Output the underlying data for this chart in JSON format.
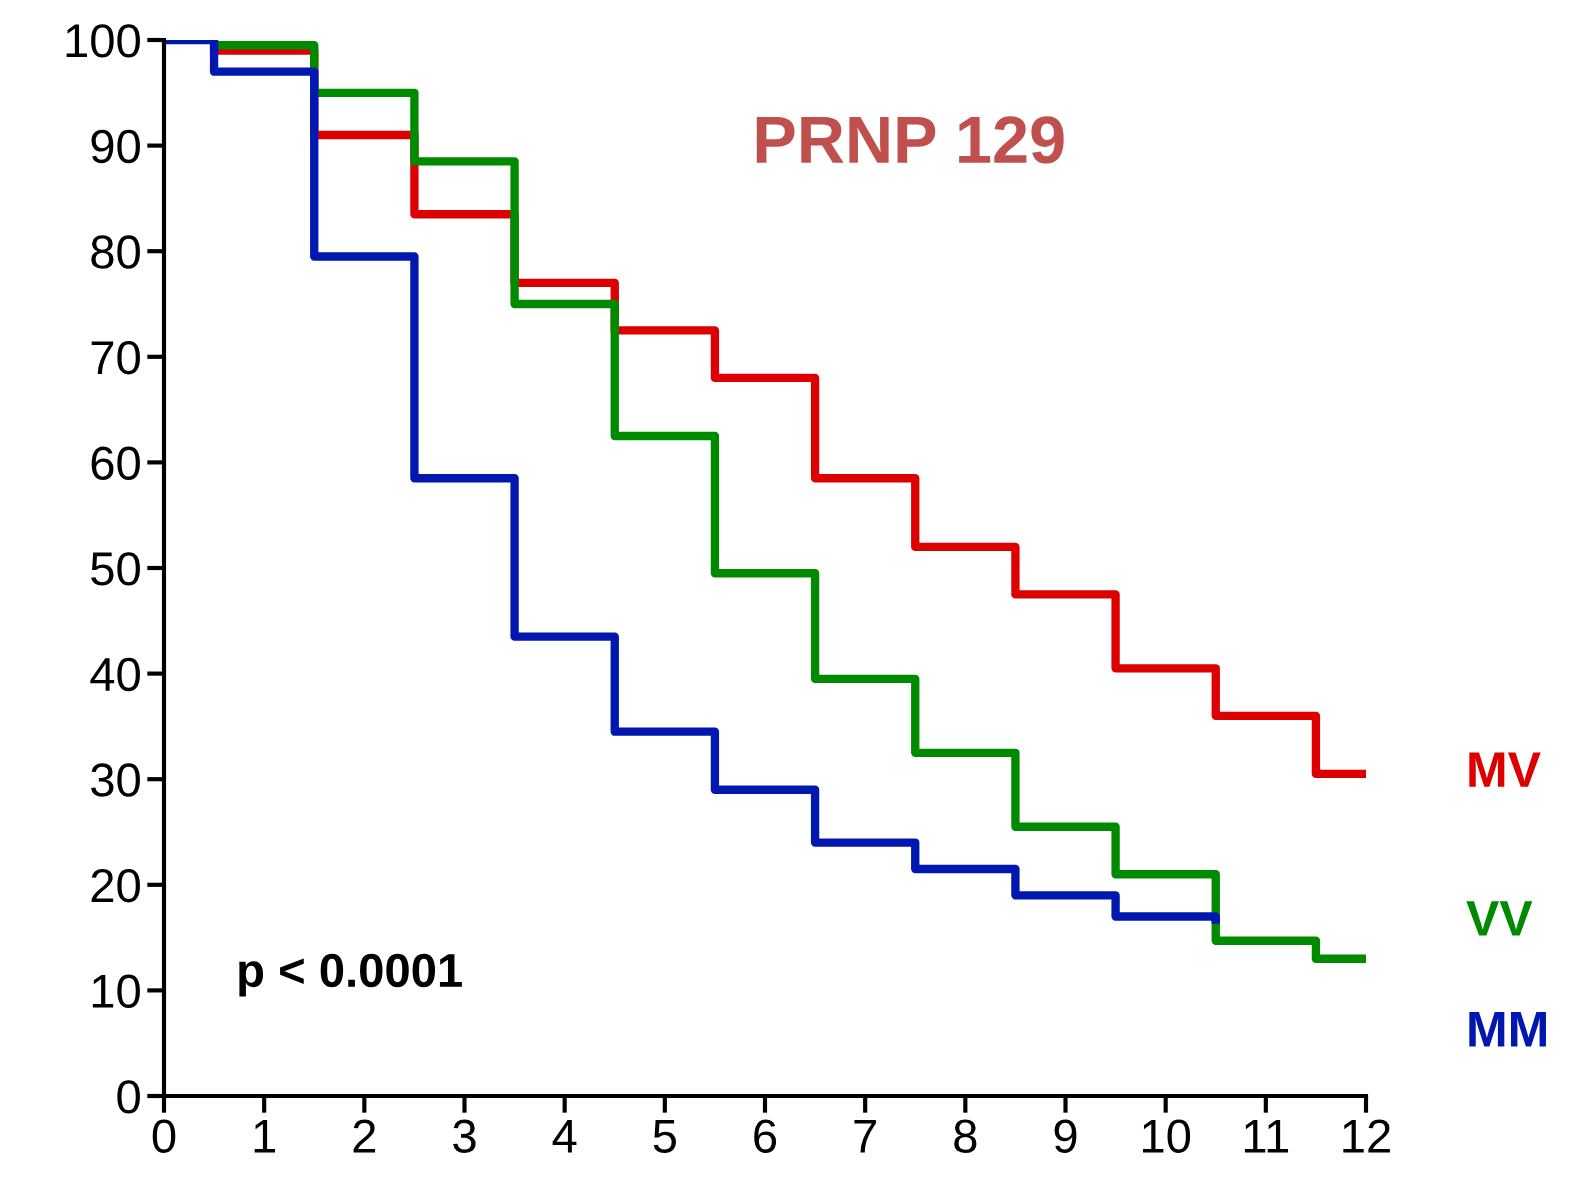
{
  "chart_data": {
    "type": "step",
    "title": "PRNP 129",
    "annotations": [
      "p < 0.0001"
    ],
    "series": [
      {
        "name": "MV",
        "color": "#dd0000",
        "x": [
          0.5,
          1.5,
          2.5,
          3.5,
          4.5,
          5.5,
          6.5,
          7.5,
          8.5,
          9.5,
          10.5,
          11.5,
          12
        ],
        "values": [
          99,
          91,
          83.5,
          77,
          72.5,
          68,
          58.5,
          52,
          47.5,
          40.5,
          36,
          30.5,
          30.5
        ]
      },
      {
        "name": "VV",
        "color": "#008a00",
        "x": [
          0.5,
          1.5,
          2.5,
          3.5,
          4.5,
          5.5,
          6.5,
          7.5,
          8.5,
          9.5,
          10.5,
          11.5,
          12
        ],
        "values": [
          99.5,
          95,
          88.5,
          75,
          62.5,
          49.5,
          39.5,
          32.5,
          25.5,
          21,
          14.7,
          13,
          13
        ]
      },
      {
        "name": "MM",
        "color": "#0018b0",
        "x": [
          0,
          0.5,
          1.5,
          2.5,
          3.5,
          4.5,
          5.5,
          6.5,
          7.5,
          8.5,
          9.5,
          10.5
        ],
        "values": [
          100,
          97,
          79.5,
          58.5,
          43.5,
          34.5,
          29,
          24,
          21.5,
          19,
          17,
          16.7
        ]
      }
    ],
    "xlim": [
      0,
      12
    ],
    "xticks": [
      0,
      1,
      2,
      3,
      4,
      5,
      6,
      7,
      8,
      9,
      10,
      11,
      12
    ],
    "ylim": [
      0,
      100
    ],
    "yticks": [
      0,
      10,
      20,
      30,
      40,
      50,
      60,
      70,
      80,
      90,
      100
    ],
    "grid": false,
    "legend": false,
    "line_style": "solid"
  }
}
